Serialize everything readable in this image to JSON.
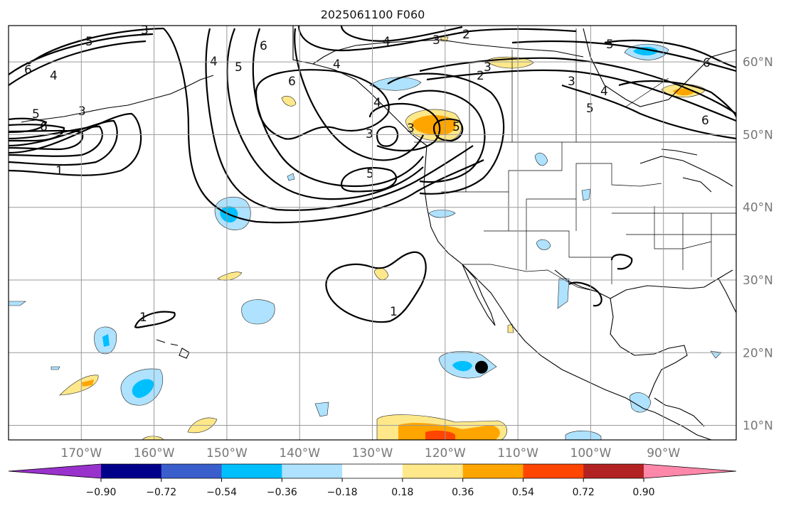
{
  "title": "2025061100 F060",
  "map": {
    "longitude_labels": [
      "170°W",
      "160°W",
      "150°W",
      "140°W",
      "130°W",
      "120°W",
      "110°W",
      "100°W",
      "90°W"
    ],
    "longitude_values": [
      -170,
      -160,
      -150,
      -140,
      -130,
      -120,
      -110,
      -100,
      -90
    ],
    "latitude_labels": [
      "10°N",
      "20°N",
      "30°N",
      "40°N",
      "50°N",
      "60°N"
    ],
    "latitude_values": [
      10,
      20,
      30,
      40,
      50,
      60
    ],
    "extent": {
      "lon_min": -180,
      "lon_max": -80,
      "lat_min": 8,
      "lat_max": 65
    },
    "gridlines": true,
    "contour_labels": [
      "6",
      "5",
      "4",
      "3",
      "2",
      "1"
    ],
    "marker": {
      "label": "",
      "lon": -115,
      "lat": 18,
      "color": "#000000"
    }
  },
  "colorbar": {
    "tick_labels": [
      "−0.90",
      "−0.72",
      "−0.54",
      "−0.36",
      "−0.18",
      "0.18",
      "0.36",
      "0.54",
      "0.72",
      "0.90"
    ],
    "colors": [
      "#9932cc",
      "#00008b",
      "#3a5fcd",
      "#00bfff",
      "#aee2ff",
      "#ffffff",
      "#ffe88a",
      "#ffa500",
      "#ff4500",
      "#b22222",
      "#ff88aa"
    ],
    "extend": "both"
  }
}
